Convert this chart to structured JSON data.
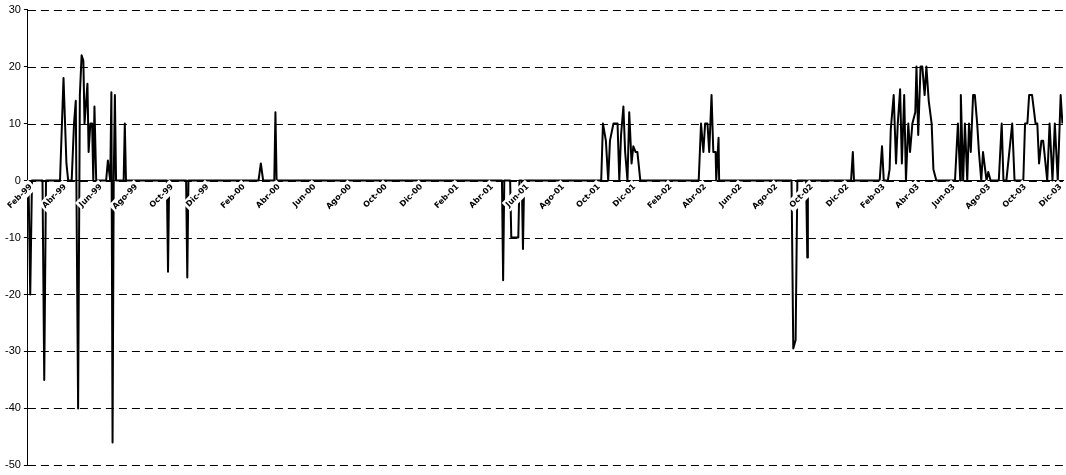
{
  "chart_data": {
    "type": "line",
    "color": "#000000",
    "grid": "y",
    "legend": false,
    "xlim": [
      "1999-02-01",
      "2003-12-10"
    ],
    "xticks": [
      {
        "value": "1999-02",
        "label": "Feb-99"
      },
      {
        "value": "1999-04",
        "label": "Abr-99"
      },
      {
        "value": "1999-06",
        "label": "Jun-99"
      },
      {
        "value": "1999-08",
        "label": "Ago-99"
      },
      {
        "value": "1999-10",
        "label": "Oct-99"
      },
      {
        "value": "1999-12",
        "label": "Dic-99"
      },
      {
        "value": "2000-02",
        "label": "Feb-00"
      },
      {
        "value": "2000-04",
        "label": "Abr-00"
      },
      {
        "value": "2000-06",
        "label": "Jun-00"
      },
      {
        "value": "2000-08",
        "label": "Ago-00"
      },
      {
        "value": "2000-10",
        "label": "Oct-00"
      },
      {
        "value": "2000-12",
        "label": "Dic-00"
      },
      {
        "value": "2001-02",
        "label": "Feb-01"
      },
      {
        "value": "2001-04",
        "label": "Abr-01"
      },
      {
        "value": "2001-06",
        "label": "Jun-01"
      },
      {
        "value": "2001-08",
        "label": "Ago-01"
      },
      {
        "value": "2001-10",
        "label": "Oct-01"
      },
      {
        "value": "2001-12",
        "label": "Dic-01"
      },
      {
        "value": "2002-02",
        "label": "Feb-02"
      },
      {
        "value": "2002-04",
        "label": "Abr-02"
      },
      {
        "value": "2002-06",
        "label": "Jun-02"
      },
      {
        "value": "2002-08",
        "label": "Ago-02"
      },
      {
        "value": "2002-10",
        "label": "Oct-02"
      },
      {
        "value": "2002-12",
        "label": "Dic-02"
      },
      {
        "value": "2003-02",
        "label": "Feb-03"
      },
      {
        "value": "2003-04",
        "label": "Abr-03"
      },
      {
        "value": "2003-06",
        "label": "Jun-03"
      },
      {
        "value": "2003-08",
        "label": "Ago-03"
      },
      {
        "value": "2003-10",
        "label": "Oct-03"
      },
      {
        "value": "2003-12",
        "label": "Dic-03"
      }
    ],
    "ylim": [
      -50,
      30
    ],
    "yticks": [
      -50,
      -40,
      -30,
      -20,
      -10,
      0,
      10,
      20,
      30
    ],
    "x": [
      "1999-02-02",
      "1999-02-05",
      "1999-02-08",
      "1999-02-26",
      "1999-03-01",
      "1999-03-04",
      "1999-03-28",
      "1999-04-03",
      "1999-04-08",
      "1999-04-11",
      "1999-04-17",
      "1999-04-21",
      "1999-04-24",
      "1999-04-28",
      "1999-05-01",
      "1999-05-04",
      "1999-05-07",
      "1999-05-09",
      "1999-05-14",
      "1999-05-16",
      "1999-05-19",
      "1999-05-22",
      "1999-05-24",
      "1999-05-26",
      "1999-05-29",
      "1999-06-15",
      "1999-06-18",
      "1999-06-22",
      "1999-06-24",
      "1999-06-26",
      "1999-06-28",
      "1999-06-30",
      "1999-07-02",
      "1999-07-15",
      "1999-07-17",
      "1999-07-19",
      "1999-09-27",
      "1999-09-29",
      "1999-10-01",
      "1999-10-30",
      "1999-11-01",
      "1999-11-03",
      "2000-03-02",
      "2000-03-06",
      "2000-03-10",
      "2000-03-29",
      "2000-03-31",
      "2000-04-02",
      "2001-04-23",
      "2001-04-25",
      "2001-04-27",
      "2001-05-07",
      "2001-05-09",
      "2001-05-21",
      "2001-05-23",
      "2001-05-27",
      "2001-05-29",
      "2001-05-31",
      "2001-10-10",
      "2001-10-13",
      "2001-10-18",
      "2001-10-22",
      "2001-10-25",
      "2001-10-31",
      "2001-11-07",
      "2001-11-10",
      "2001-11-13",
      "2001-11-17",
      "2001-11-20",
      "2001-11-24",
      "2001-11-27",
      "2001-12-01",
      "2001-12-04",
      "2001-12-08",
      "2001-12-11",
      "2001-12-13",
      "2001-12-16",
      "2002-03-26",
      "2002-03-30",
      "2002-04-03",
      "2002-04-06",
      "2002-04-10",
      "2002-04-13",
      "2002-04-17",
      "2002-04-20",
      "2002-04-24",
      "2002-04-25",
      "2002-04-29",
      "2002-04-30",
      "2002-09-01",
      "2002-09-04",
      "2002-09-08",
      "2002-09-11",
      "2002-09-26",
      "2002-09-28",
      "2002-09-29",
      "2002-12-12",
      "2002-12-15",
      "2002-12-17",
      "2003-01-30",
      "2003-02-03",
      "2003-02-06",
      "2003-02-13",
      "2003-02-16",
      "2003-02-18",
      "2003-02-23",
      "2003-02-27",
      "2003-03-02",
      "2003-03-06",
      "2003-03-09",
      "2003-03-13",
      "2003-03-16",
      "2003-03-20",
      "2003-03-23",
      "2003-03-27",
      "2003-04-01",
      "2003-04-03",
      "2003-04-06",
      "2003-04-10",
      "2003-04-13",
      "2003-04-17",
      "2003-04-20",
      "2003-04-24",
      "2003-04-29",
      "2003-05-02",
      "2003-05-07",
      "2003-06-08",
      "2003-06-13",
      "2003-06-17",
      "2003-06-18",
      "2003-06-22",
      "2003-06-25",
      "2003-06-29",
      "2003-07-02",
      "2003-07-05",
      "2003-07-09",
      "2003-07-12",
      "2003-07-16",
      "2003-07-19",
      "2003-07-23",
      "2003-07-26",
      "2003-08-01",
      "2003-08-04",
      "2003-08-08",
      "2003-08-22",
      "2003-08-27",
      "2003-08-30",
      "2003-09-04",
      "2003-09-09",
      "2003-09-14",
      "2003-09-18",
      "2003-10-03",
      "2003-10-06",
      "2003-10-10",
      "2003-10-13",
      "2003-10-18",
      "2003-10-24",
      "2003-10-27",
      "2003-10-30",
      "2003-11-03",
      "2003-11-06",
      "2003-11-10",
      "2003-11-13",
      "2003-11-17",
      "2003-11-22",
      "2003-11-26",
      "2003-12-01",
      "2003-12-06",
      "2003-12-09"
    ],
    "values": [
      0,
      -20,
      0,
      0,
      -35,
      0,
      0,
      18,
      3,
      0,
      0,
      10,
      14,
      -40,
      15,
      22,
      21,
      10,
      17,
      5,
      10,
      10,
      0,
      13,
      0,
      0,
      3.5,
      0,
      15.5,
      -46,
      0,
      15,
      0,
      0,
      10,
      0,
      0,
      -16,
      0,
      0,
      -17,
      0,
      0,
      3,
      0,
      0,
      12,
      0,
      0,
      -17.5,
      0,
      0,
      -10,
      -10,
      0,
      0,
      -12,
      0,
      0,
      10,
      7,
      0,
      7,
      10,
      10,
      0,
      8,
      13,
      5,
      0,
      12,
      3,
      6,
      5,
      5,
      3,
      0,
      0,
      10,
      5,
      10,
      10,
      5,
      15,
      5,
      5,
      0,
      7.5,
      0,
      0,
      -29.5,
      -28,
      0,
      0,
      -13.5,
      0,
      0,
      5,
      0,
      0,
      6,
      0,
      0,
      2,
      9,
      15,
      3,
      10,
      16,
      3,
      15,
      0,
      10,
      5,
      10,
      12,
      20,
      8,
      20,
      20,
      15,
      20,
      14,
      10,
      2,
      0,
      0,
      10,
      0,
      15,
      0,
      10,
      0,
      10,
      5,
      15,
      15,
      10,
      5,
      0,
      5,
      0,
      1.5,
      0,
      0,
      10,
      0,
      0,
      5,
      10,
      0,
      0,
      10,
      10,
      15,
      15,
      10,
      10,
      3,
      7,
      7,
      3,
      0,
      10,
      0,
      10,
      0,
      15,
      10
    ]
  }
}
